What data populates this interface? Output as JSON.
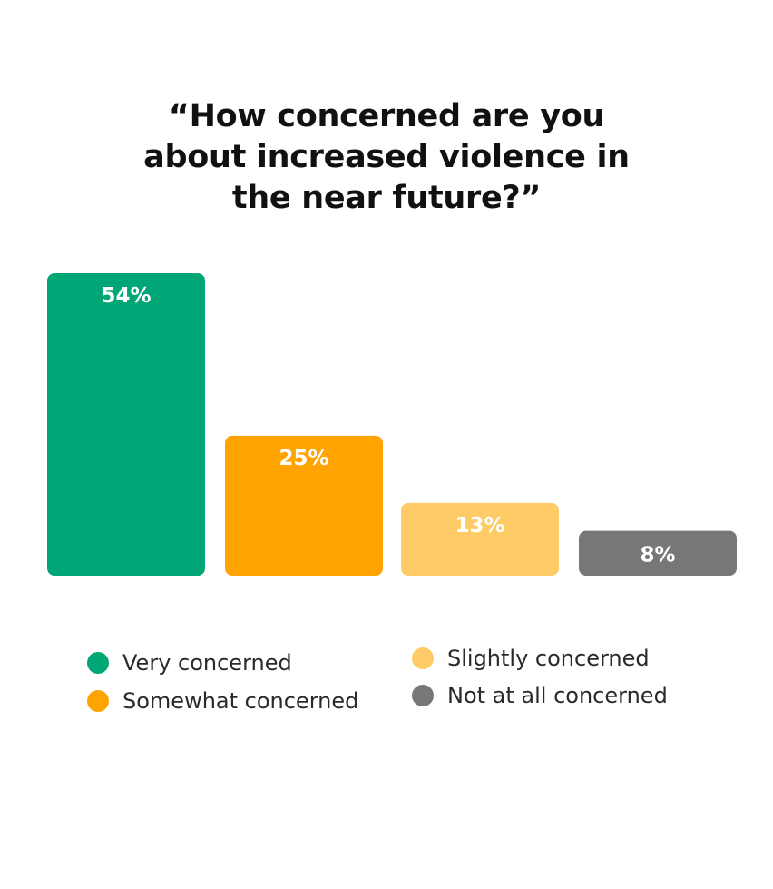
{
  "title_lines": [
    "“How concerned are you",
    "about increased violence in",
    "the near future?”"
  ],
  "chart_data": {
    "type": "bar",
    "title": "“How concerned are you about increased violence in the near future?”",
    "categories": [
      "Very concerned",
      "Somewhat concerned",
      "Slightly concerned",
      "Not at all concerned"
    ],
    "values": [
      54,
      25,
      13,
      8
    ],
    "data_labels": [
      "54%",
      "25%",
      "13%",
      "8%"
    ],
    "colors": [
      "#00a676",
      "#ffa300",
      "#ffcb66",
      "#777777"
    ],
    "label_color": "#ffffff",
    "ylim": [
      0,
      54
    ],
    "grid": false,
    "legend_placement": "bottom"
  }
}
